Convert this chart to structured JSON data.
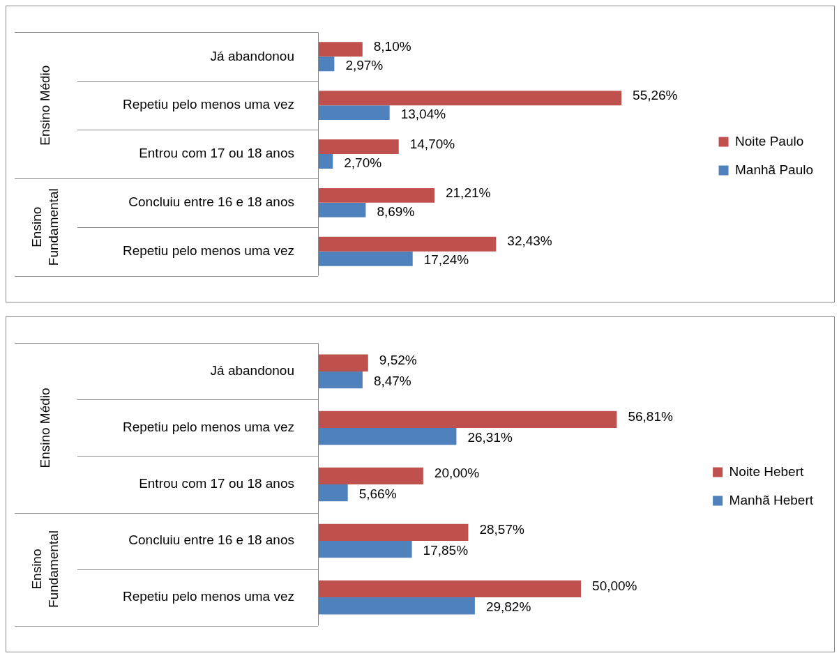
{
  "chart_data": [
    {
      "type": "bar",
      "orientation": "horizontal",
      "legend": "right",
      "categories": [
        "Já abandonou",
        "Repetiu pelo menos uma vez",
        "Entrou com 17 ou 18 anos",
        "Concluiu entre 16 e 18 anos",
        "Repetiu pelo menos uma vez"
      ],
      "annotations": [
        "Ensino Médio",
        "Ensino Fundamental"
      ],
      "series": [
        {
          "name": "Noite Paulo",
          "color": "#c0504d",
          "values": [
            8.1,
            55.26,
            14.7,
            21.21,
            32.43
          ],
          "value_labels": [
            "8,10%",
            "55,26%",
            "14,70%",
            "21,21%",
            "32,43%"
          ]
        },
        {
          "name": "Manhã Paulo",
          "color": "#4f81bd",
          "values": [
            2.97,
            13.04,
            2.7,
            8.69,
            17.24
          ],
          "value_labels": [
            "2,97%",
            "13,04%",
            "2,70%",
            "8,69%",
            "17,24%"
          ]
        }
      ]
    },
    {
      "type": "bar",
      "orientation": "horizontal",
      "legend": "right",
      "categories": [
        "Já abandonou",
        "Repetiu pelo menos uma vez",
        "Entrou com 17 ou 18 anos",
        "Concluiu entre 16 e 18 anos",
        "Repetiu pelo menos uma vez"
      ],
      "annotations": [
        "Ensino Médio",
        "Ensino Fundamental"
      ],
      "series": [
        {
          "name": "Noite Hebert",
          "color": "#c0504d",
          "values": [
            9.52,
            56.81,
            20.0,
            28.57,
            50.0
          ],
          "value_labels": [
            "9,52%",
            "56,81%",
            "20,00%",
            "28,57%",
            "50,00%"
          ]
        },
        {
          "name": "Manhã Hebert",
          "color": "#4f81bd",
          "values": [
            8.47,
            26.31,
            5.66,
            17.85,
            29.82
          ],
          "value_labels": [
            "8,47%",
            "26,31%",
            "5,66%",
            "17,85%",
            "29,82%"
          ]
        }
      ]
    }
  ]
}
